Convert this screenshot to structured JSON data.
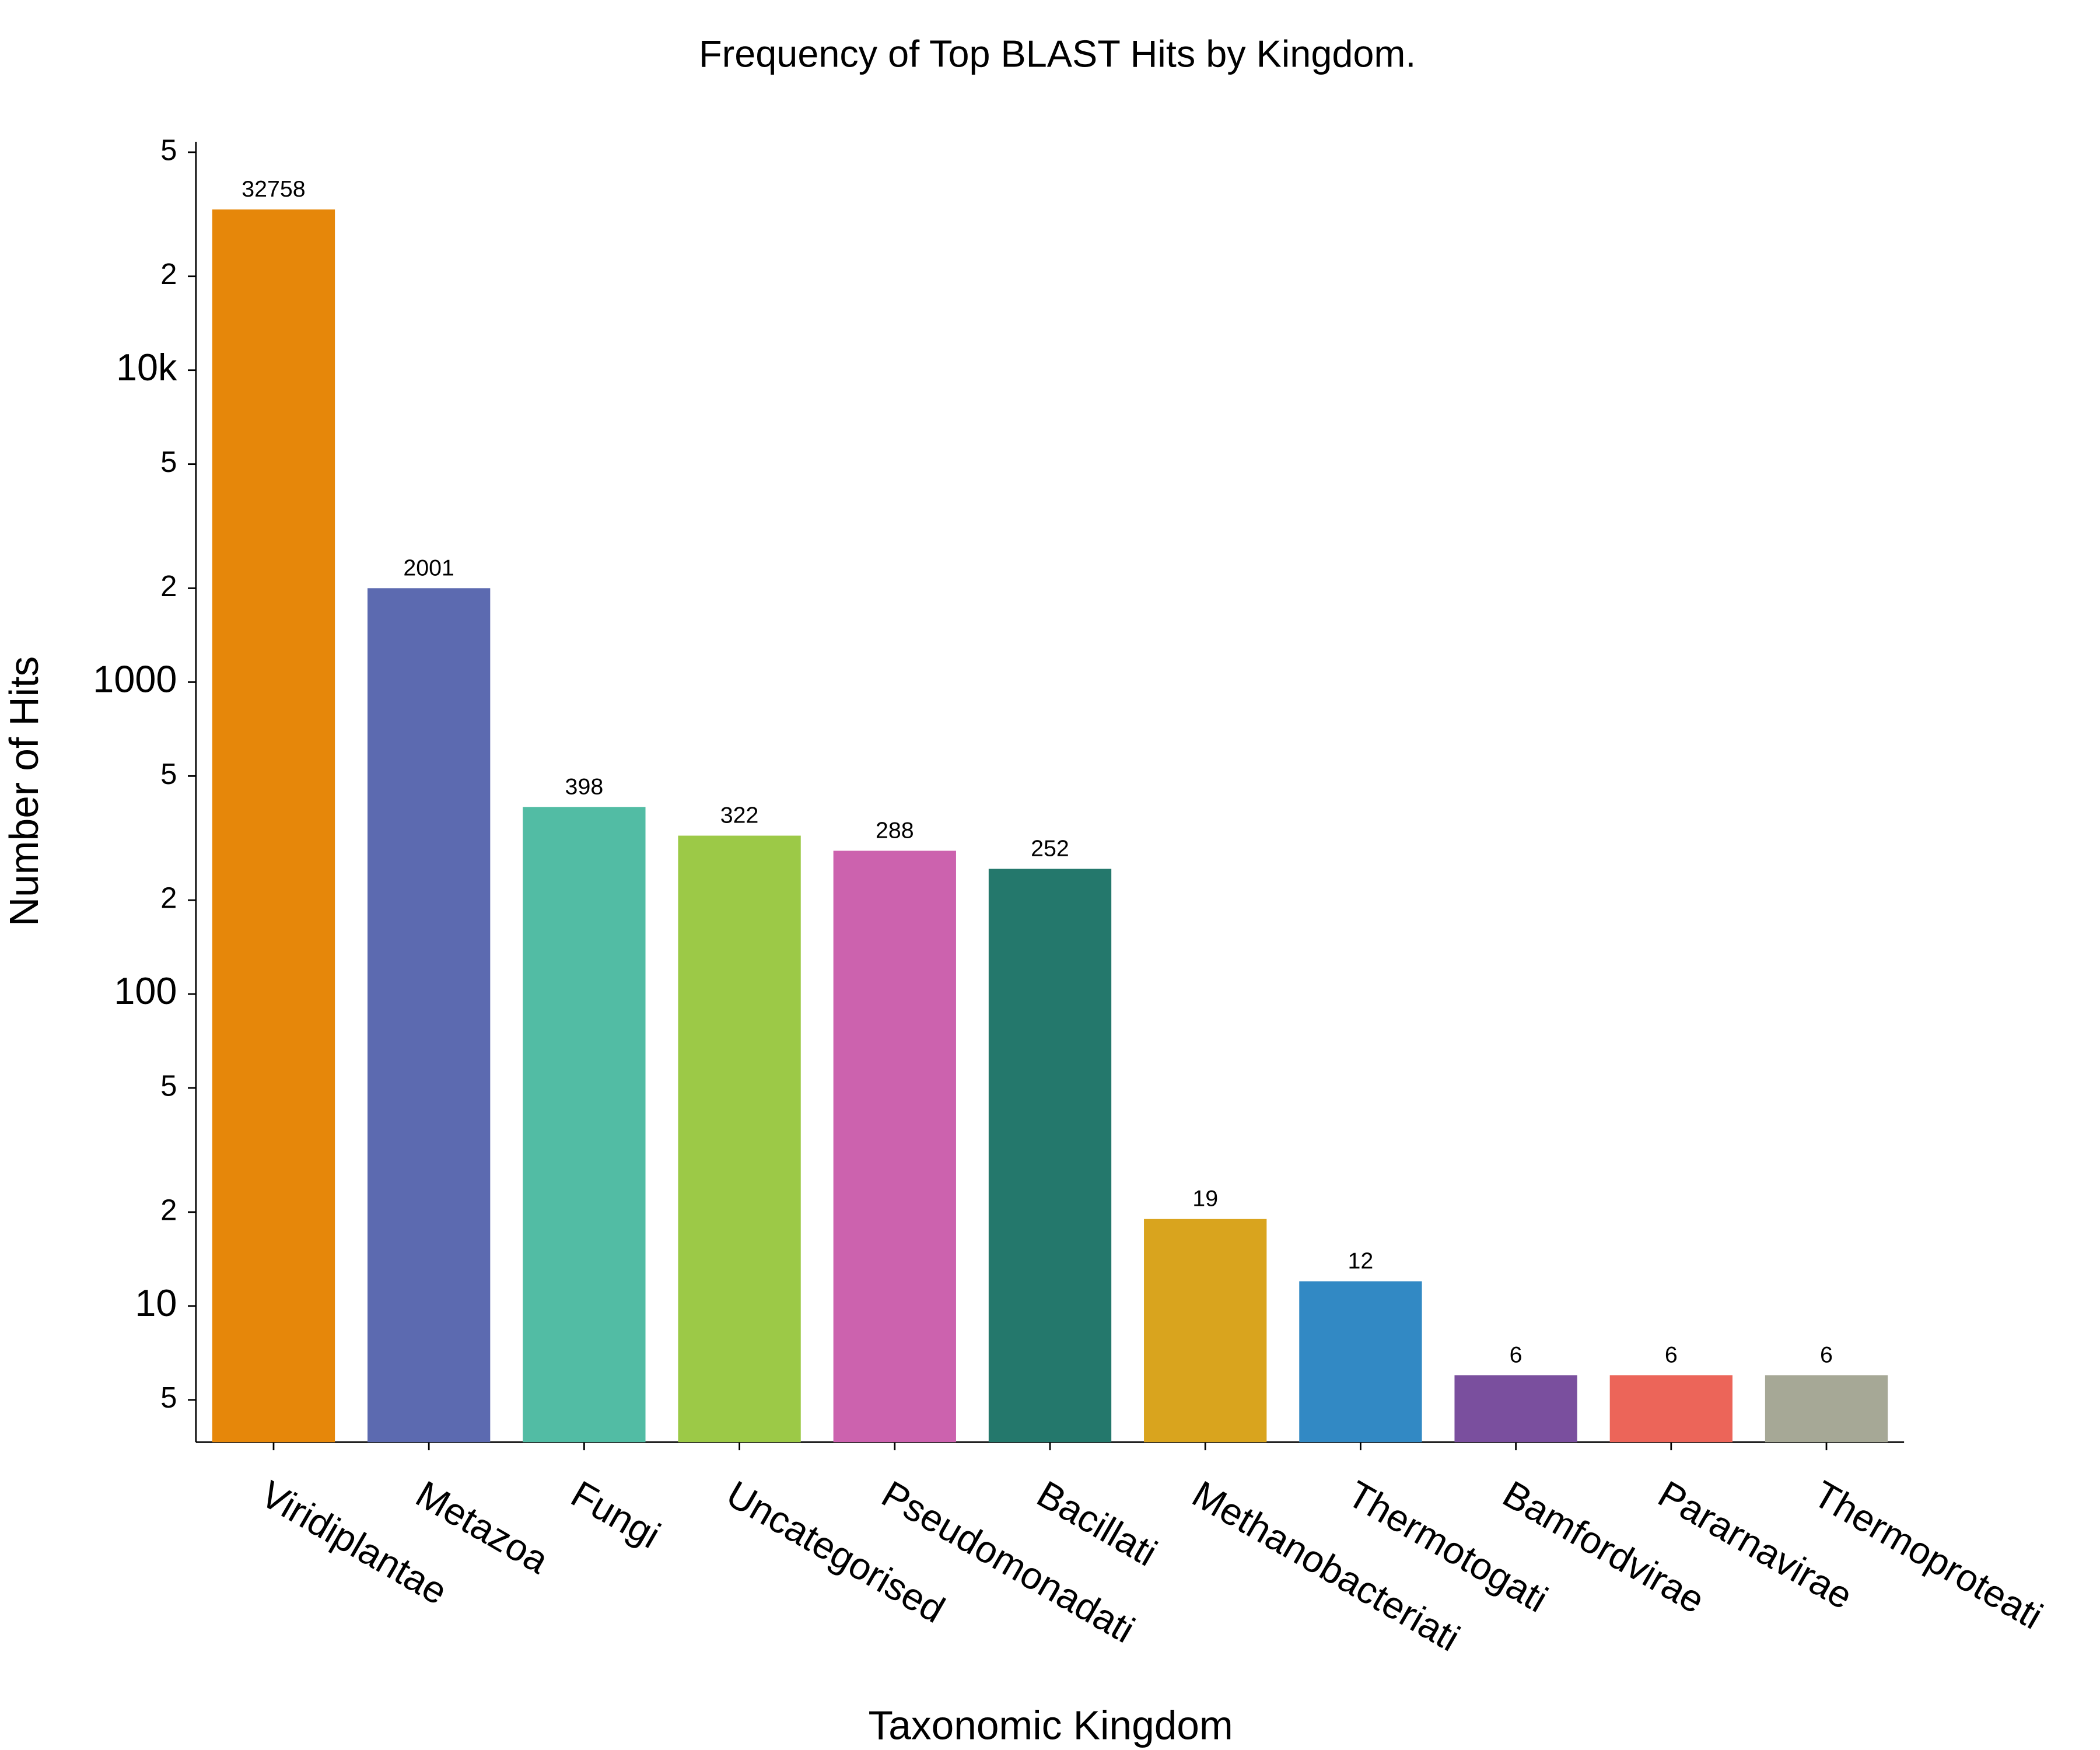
{
  "chart_data": {
    "type": "bar",
    "title": "Frequency of Top BLAST Hits by Kingdom.",
    "x_label": "Taxonomic Kingdom",
    "y_label": "Number of Hits",
    "categories": [
      "Viridiplantae",
      "Metazoa",
      "Fungi",
      "Uncategorised",
      "Pseudomonadati",
      "Bacillati",
      "Methanobacteriati",
      "Thermotogati",
      "Bamfordvirae",
      "Pararnavirae",
      "Thermoproteati"
    ],
    "values": [
      32758,
      2001,
      398,
      322,
      288,
      252,
      19,
      12,
      6,
      6,
      6
    ],
    "colors": [
      "#e6870a",
      "#5c6ab0",
      "#52bca4",
      "#9cc947",
      "#cc62ae",
      "#24786c",
      "#d9a41e",
      "#3289c4",
      "#7a4f9e",
      "#ec6559",
      "#a6a896"
    ],
    "y_scale": "log",
    "ylim": [
      3.66,
      54000
    ],
    "yticks": [
      5,
      10,
      {
        "value": 20,
        "label": "2"
      },
      {
        "value": 50,
        "label": "5"
      },
      100,
      {
        "value": 200,
        "label": "2"
      },
      {
        "value": 500,
        "label": "5"
      },
      1000,
      {
        "value": 2000,
        "label": "2"
      },
      {
        "value": 5000,
        "label": "5"
      },
      {
        "value": 10000,
        "label": "10k"
      },
      {
        "value": 20000,
        "label": "2"
      },
      {
        "value": 50000,
        "label": "5"
      }
    ]
  }
}
